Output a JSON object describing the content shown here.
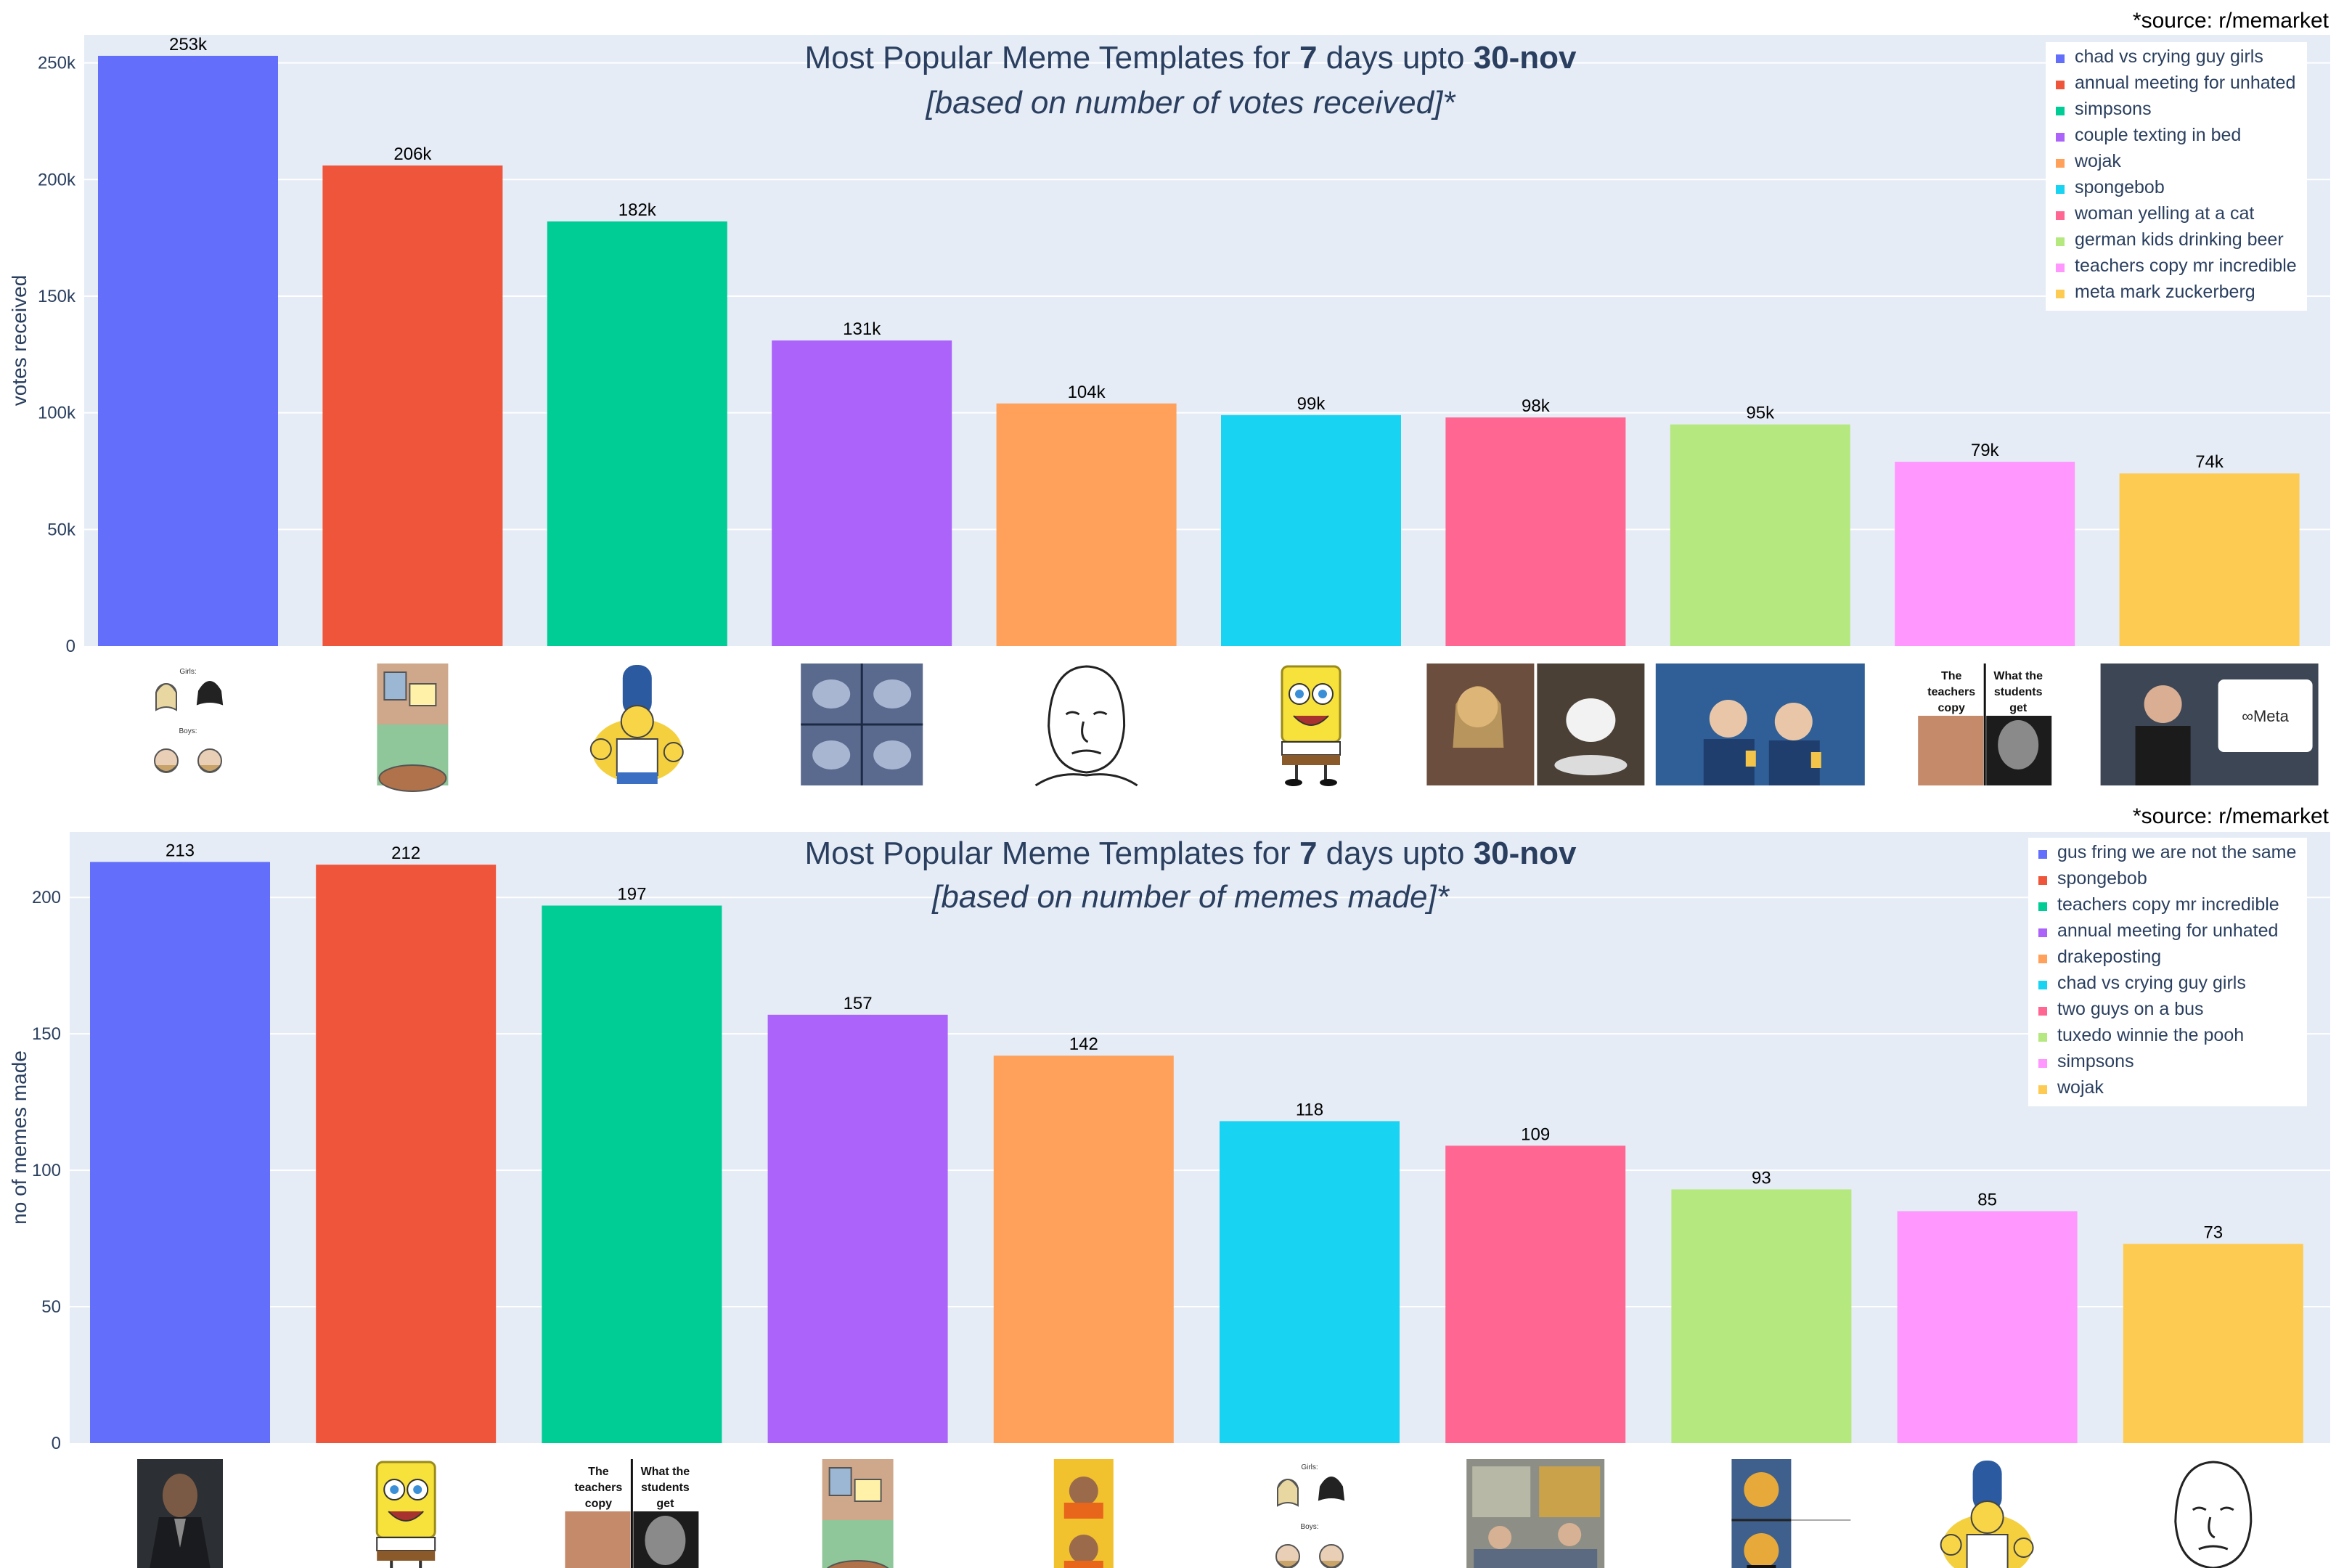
{
  "colors": [
    "#636efa",
    "#ef553b",
    "#00cc96",
    "#ab63fa",
    "#ffa15a",
    "#19d3f3",
    "#ff6692",
    "#b6e880",
    "#ff97ff",
    "#fecb52"
  ],
  "chart_data": [
    {
      "type": "bar",
      "title_parts": [
        "Most Popular Meme Templates for ",
        "7",
        " days upto ",
        "30-nov"
      ],
      "subtitle": "[based on number of votes received]*",
      "source": "*source: r/memarket",
      "ylabel": "votes received",
      "xlabel": "",
      "ylim": [
        0,
        262000
      ],
      "yticks": [
        0,
        50000,
        100000,
        150000,
        200000,
        250000
      ],
      "ytick_labels": [
        "0",
        "50k",
        "100k",
        "150k",
        "200k",
        "250k"
      ],
      "grid": true,
      "legend_position": "top-right",
      "categories": [
        "chad vs crying guy girls",
        "annual meeting for unhated",
        "simpsons",
        "couple texting in bed",
        "wojak",
        "spongebob",
        "woman yelling at a cat",
        "german kids drinking beer",
        "teachers copy mr incredible",
        "meta mark zuckerberg"
      ],
      "values": [
        253000,
        206000,
        182000,
        131000,
        104000,
        99000,
        98000,
        95000,
        79000,
        74000
      ],
      "data_labels": [
        "253k",
        "206k",
        "182k",
        "131k",
        "104k",
        "99k",
        "98k",
        "95k",
        "79k",
        "74k"
      ],
      "image_captions": [
        [],
        [],
        [],
        [],
        [],
        [],
        [],
        [],
        [
          "The teachers copy",
          "What the students get"
        ],
        [
          "Meta"
        ]
      ],
      "chad_image_text": [
        "Girls:",
        "Boys:"
      ]
    },
    {
      "type": "bar",
      "title_parts": [
        "Most Popular Meme Templates for ",
        "7",
        " days upto ",
        "30-nov"
      ],
      "subtitle": "[based on number of memes made]*",
      "source": "*source: r/memarket",
      "ylabel": "no of memes made",
      "xlabel": "",
      "ylim": [
        0,
        224
      ],
      "yticks": [
        0,
        50,
        100,
        150,
        200
      ],
      "ytick_labels": [
        "0",
        "50",
        "100",
        "150",
        "200"
      ],
      "grid": true,
      "legend_position": "top-right",
      "categories": [
        "gus fring we are not the same",
        "spongebob",
        "teachers copy mr incredible",
        "annual meeting for unhated",
        "drakeposting",
        "chad vs crying guy girls",
        "two guys on a bus",
        "tuxedo winnie the pooh",
        "simpsons",
        "wojak"
      ],
      "values": [
        213,
        212,
        197,
        157,
        142,
        118,
        109,
        93,
        85,
        73
      ],
      "data_labels": [
        "213",
        "212",
        "197",
        "157",
        "142",
        "118",
        "109",
        "93",
        "85",
        "73"
      ],
      "image_captions": [
        [],
        [],
        [
          "The teachers copy",
          "What the students get"
        ],
        [],
        [],
        [],
        [],
        [],
        [],
        []
      ],
      "chad_image_text": [
        "Girls:",
        "Boys:"
      ]
    }
  ]
}
